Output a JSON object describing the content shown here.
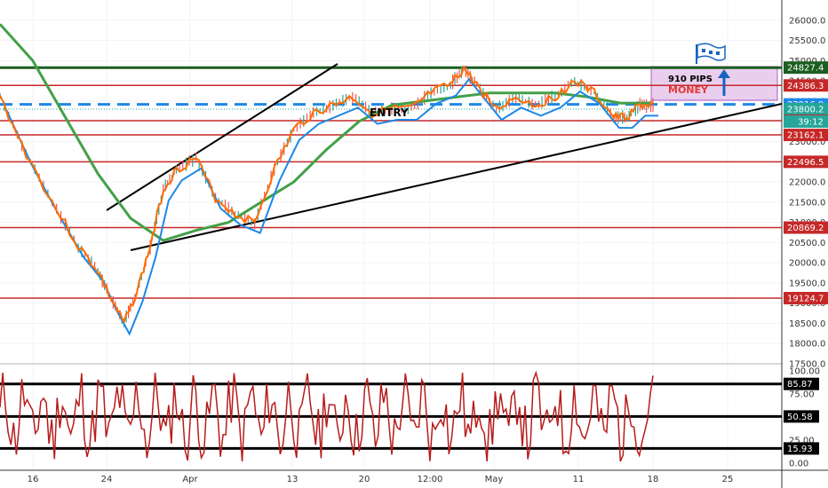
{
  "chart_data": {
    "type": "line",
    "price_axis": {
      "min": 17500,
      "max": 26500,
      "ticks": [
        "26000.0",
        "25500.0",
        "25000.0",
        "24500.0",
        "24000.0",
        "23500.0",
        "23000.0",
        "22500.0",
        "22000.0",
        "21500.0",
        "21000.0",
        "20500.0",
        "20000.0",
        "19500.0",
        "19000.0",
        "18500.0",
        "18000.0",
        "17500.0"
      ]
    },
    "time_axis": {
      "labels": [
        "16",
        "24",
        "Apr",
        "13",
        "20",
        "12:00",
        "May",
        "11",
        "18",
        "25"
      ]
    },
    "horizontal_levels": [
      {
        "value": 24827.4,
        "label": "24827.4",
        "color": "#1b5e20"
      },
      {
        "value": 24386.3,
        "label": "24386.3",
        "color": "#c62828"
      },
      {
        "value": 23916.9,
        "label": "23916.9",
        "color": "#1e88e5"
      },
      {
        "value": 23800.2,
        "label": "23800.2",
        "color": "#26a69a"
      },
      {
        "value": 23514.5,
        "label": "23514.5",
        "color": "#c62828"
      },
      {
        "value": 23162.1,
        "label": "23162.1",
        "color": "#c62828"
      },
      {
        "value": 22496.5,
        "label": "22496.5",
        "color": "#c62828"
      },
      {
        "value": 20869.2,
        "label": "20869.2",
        "color": "#c62828"
      },
      {
        "value": 19124.7,
        "label": "19124.7",
        "color": "#c62828"
      }
    ],
    "countdown_label": "39:12",
    "annotations": {
      "target_text": "910 PIPS",
      "money_text": "MONEY",
      "entry_text": "ENTRY"
    },
    "price_series": [
      {
        "x": 0,
        "y": 24100
      },
      {
        "x": 4,
        "y": 22700
      },
      {
        "x": 8,
        "y": 21500
      },
      {
        "x": 12,
        "y": 20400
      },
      {
        "x": 15,
        "y": 19800
      },
      {
        "x": 17,
        "y": 19100
      },
      {
        "x": 19,
        "y": 18500
      },
      {
        "x": 21,
        "y": 19300
      },
      {
        "x": 23,
        "y": 20400
      },
      {
        "x": 25,
        "y": 21800
      },
      {
        "x": 27,
        "y": 22300
      },
      {
        "x": 30,
        "y": 22600
      },
      {
        "x": 33,
        "y": 21600
      },
      {
        "x": 36,
        "y": 21200
      },
      {
        "x": 39,
        "y": 21000
      },
      {
        "x": 42,
        "y": 22300
      },
      {
        "x": 45,
        "y": 23300
      },
      {
        "x": 48,
        "y": 23700
      },
      {
        "x": 51,
        "y": 23900
      },
      {
        "x": 54,
        "y": 24100
      },
      {
        "x": 57,
        "y": 23700
      },
      {
        "x": 60,
        "y": 23800
      },
      {
        "x": 63,
        "y": 23800
      },
      {
        "x": 66,
        "y": 24200
      },
      {
        "x": 69,
        "y": 24400
      },
      {
        "x": 71,
        "y": 24800
      },
      {
        "x": 73,
        "y": 24400
      },
      {
        "x": 76,
        "y": 23800
      },
      {
        "x": 79,
        "y": 24100
      },
      {
        "x": 82,
        "y": 23900
      },
      {
        "x": 85,
        "y": 24100
      },
      {
        "x": 88,
        "y": 24500
      },
      {
        "x": 91,
        "y": 24200
      },
      {
        "x": 94,
        "y": 23600
      },
      {
        "x": 96,
        "y": 23600
      },
      {
        "x": 98,
        "y": 23900
      },
      {
        "x": 100,
        "y": 23900
      }
    ],
    "slow_ma_series": [
      {
        "x": 0,
        "y": 25900
      },
      {
        "x": 5,
        "y": 25000
      },
      {
        "x": 10,
        "y": 23600
      },
      {
        "x": 15,
        "y": 22200
      },
      {
        "x": 20,
        "y": 21100
      },
      {
        "x": 25,
        "y": 20550
      },
      {
        "x": 30,
        "y": 20800
      },
      {
        "x": 35,
        "y": 21000
      },
      {
        "x": 40,
        "y": 21500
      },
      {
        "x": 45,
        "y": 22000
      },
      {
        "x": 50,
        "y": 22800
      },
      {
        "x": 55,
        "y": 23500
      },
      {
        "x": 60,
        "y": 23900
      },
      {
        "x": 65,
        "y": 24000
      },
      {
        "x": 70,
        "y": 24100
      },
      {
        "x": 75,
        "y": 24200
      },
      {
        "x": 80,
        "y": 24200
      },
      {
        "x": 85,
        "y": 24200
      },
      {
        "x": 90,
        "y": 24100
      },
      {
        "x": 95,
        "y": 23950
      },
      {
        "x": 100,
        "y": 23950
      }
    ],
    "oscillator": {
      "min": 0,
      "max": 100,
      "ticks": [
        "100.00",
        "75.00",
        "50.00",
        "25.00",
        "0.00"
      ],
      "levels": [
        {
          "value": 85.87,
          "label": "85.87"
        },
        {
          "value": 50.58,
          "label": "50.58"
        },
        {
          "value": 15.93,
          "label": "15.93"
        }
      ]
    }
  }
}
